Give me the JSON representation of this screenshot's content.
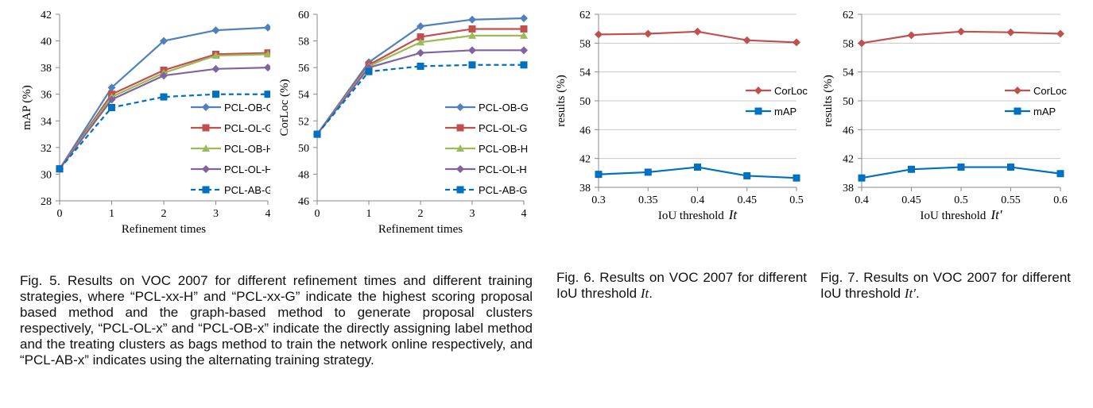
{
  "chart_data": [
    {
      "type": "line",
      "x": [
        0,
        1,
        2,
        3,
        4
      ],
      "xlabel": "Refinement times",
      "ylabel": "mAP (%)",
      "ylim": [
        28,
        42
      ],
      "yticks": [
        28,
        30,
        32,
        34,
        36,
        38,
        40,
        42
      ],
      "xticks": [
        "0",
        "1",
        "2",
        "3",
        "4"
      ],
      "legend_position": "bottom-right",
      "series": [
        {
          "name": "PCL-OB-G",
          "values": [
            30.4,
            36.5,
            40.0,
            40.8,
            41.0
          ],
          "color": "#4f81bd",
          "marker": "diamond",
          "dashed": false
        },
        {
          "name": "PCL-OL-G",
          "values": [
            30.4,
            36.0,
            37.8,
            39.0,
            39.1
          ],
          "color": "#c0504d",
          "marker": "square",
          "dashed": false
        },
        {
          "name": "PCL-OB-H",
          "values": [
            30.4,
            35.8,
            37.6,
            38.9,
            39.0
          ],
          "color": "#9bbb59",
          "marker": "triangle",
          "dashed": false
        },
        {
          "name": "PCL-OL-H",
          "values": [
            30.4,
            35.6,
            37.4,
            37.9,
            38.0
          ],
          "color": "#8064a2",
          "marker": "diamond",
          "dashed": false
        },
        {
          "name": "PCL-AB-G",
          "values": [
            30.4,
            35.0,
            35.8,
            36.0,
            36.0
          ],
          "color": "#0070c0",
          "marker": "square",
          "dashed": true
        }
      ]
    },
    {
      "type": "line",
      "x": [
        0,
        1,
        2,
        3,
        4
      ],
      "xlabel": "Refinement times",
      "ylabel": "CorLoc (%)",
      "ylim": [
        46,
        60
      ],
      "yticks": [
        46,
        48,
        50,
        52,
        54,
        56,
        58,
        60
      ],
      "xticks": [
        "0",
        "1",
        "2",
        "3",
        "4"
      ],
      "legend_position": "bottom-right",
      "series": [
        {
          "name": "PCL-OB-G",
          "values": [
            51.0,
            56.4,
            59.1,
            59.6,
            59.7
          ],
          "color": "#4f81bd",
          "marker": "diamond",
          "dashed": false
        },
        {
          "name": "PCL-OL-G",
          "values": [
            51.0,
            56.2,
            58.3,
            58.9,
            58.9
          ],
          "color": "#c0504d",
          "marker": "square",
          "dashed": false
        },
        {
          "name": "PCL-OB-H",
          "values": [
            51.0,
            56.1,
            57.9,
            58.4,
            58.4
          ],
          "color": "#9bbb59",
          "marker": "triangle",
          "dashed": false
        },
        {
          "name": "PCL-OL-H",
          "values": [
            51.0,
            56.0,
            57.1,
            57.3,
            57.3
          ],
          "color": "#8064a2",
          "marker": "diamond",
          "dashed": false
        },
        {
          "name": "PCL-AB-G",
          "values": [
            51.0,
            55.7,
            56.1,
            56.2,
            56.2
          ],
          "color": "#0070c0",
          "marker": "square",
          "dashed": true
        }
      ]
    },
    {
      "type": "line",
      "x": [
        0.3,
        0.35,
        0.4,
        0.45,
        0.5
      ],
      "xlabel": "IoU threshold",
      "xlabel_math": "It",
      "ylabel": "results (%)",
      "ylim": [
        38,
        62
      ],
      "ybase_label": "38",
      "yticks": [
        42,
        46,
        50,
        54,
        58,
        62
      ],
      "xticks": [
        "0.3",
        "0.35",
        "0.4",
        "0.45",
        "0.5"
      ],
      "legend_position": "center-right",
      "series": [
        {
          "name": "CorLoc",
          "values": [
            59.2,
            59.3,
            59.6,
            58.4,
            58.1
          ],
          "color": "#c0504d",
          "marker": "diamond",
          "dashed": false
        },
        {
          "name": "mAP",
          "values": [
            39.8,
            40.1,
            40.8,
            39.6,
            39.3
          ],
          "color": "#0070c0",
          "marker": "square",
          "dashed": false
        }
      ]
    },
    {
      "type": "line",
      "x": [
        0.4,
        0.45,
        0.5,
        0.55,
        0.6
      ],
      "xlabel": "IoU threshold",
      "xlabel_math": "It'",
      "ylabel": "results (%)",
      "ylim": [
        38,
        62
      ],
      "ybase_label": "38",
      "yticks": [
        42,
        46,
        50,
        54,
        58,
        62
      ],
      "xticks": [
        "0.4",
        "0.45",
        "0.5",
        "0.55",
        "0.6"
      ],
      "legend_position": "center-right",
      "series": [
        {
          "name": "CorLoc",
          "values": [
            58.0,
            59.1,
            59.6,
            59.5,
            59.3
          ],
          "color": "#c0504d",
          "marker": "diamond",
          "dashed": false
        },
        {
          "name": "mAP",
          "values": [
            39.3,
            40.5,
            40.8,
            40.8,
            39.9
          ],
          "color": "#0070c0",
          "marker": "square",
          "dashed": false
        }
      ]
    }
  ],
  "captions": {
    "fig5": "Fig. 5. Results on VOC 2007 for different refinement times and different training strategies, where “PCL-xx-H” and “PCL-xx-G” indicate the highest scoring proposal based method and the graph-based method to generate proposal clusters respectively, “PCL-OL-x” and “PCL-OB-x” indicate the directly assigning label method and the treating clusters as bags method to train the network online respectively, and “PCL-AB-x” indicates using the alternating training strategy.",
    "fig6_prefix": "Fig. 6. Results on VOC 2007 for different IoU threshold ",
    "fig6_math": "It",
    "fig7_prefix": "Fig. 7. Results on VOC 2007 for different IoU threshold ",
    "fig7_math": "It′"
  }
}
